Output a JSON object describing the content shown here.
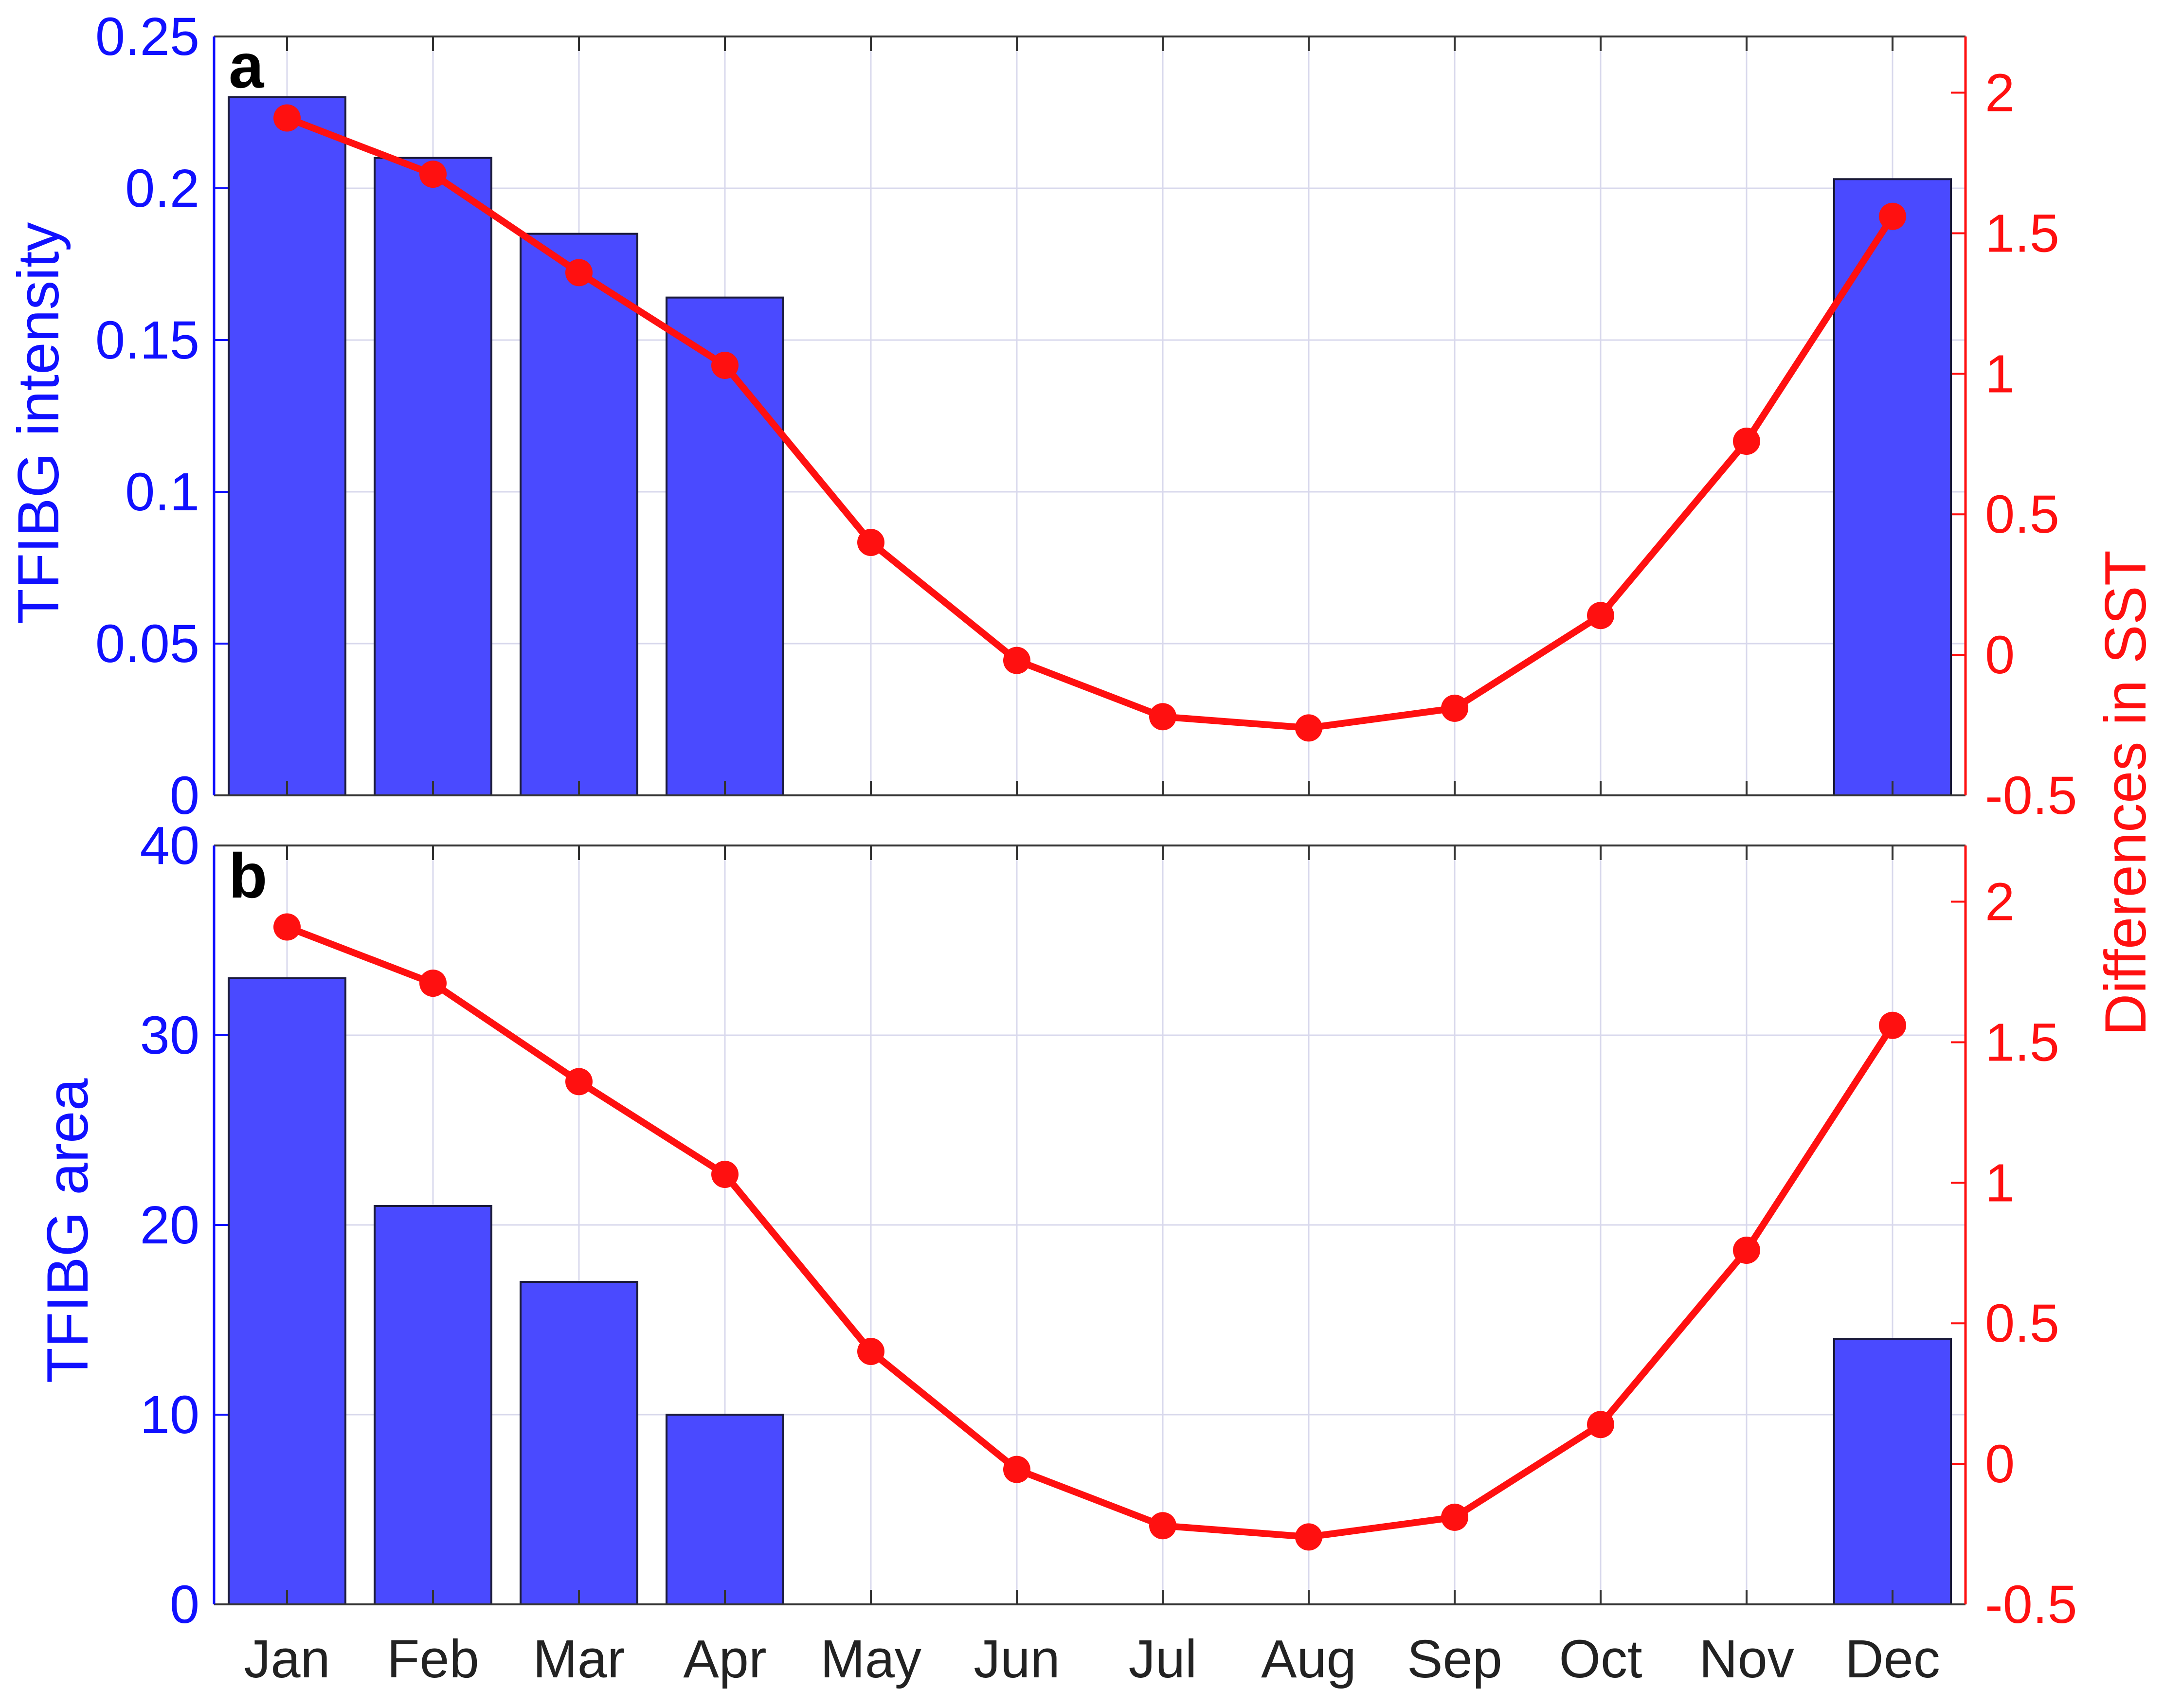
{
  "colors": {
    "bar": "#4a4aff",
    "bar_edge": "#1a1a3a",
    "line": "#ff1010",
    "left_axis": "#1010ff",
    "right_axis": "#ff1010",
    "grid": "#d8d8ec"
  },
  "chart_data": [
    {
      "panel": "a",
      "type": "bar",
      "categories": [
        "Jan",
        "Feb",
        "Mar",
        "Apr",
        "May",
        "Jun",
        "Jul",
        "Aug",
        "Sep",
        "Oct",
        "Nov",
        "Dec"
      ],
      "series": [
        {
          "axis": "left",
          "type": "bar",
          "values": [
            0.23,
            0.21,
            0.185,
            0.164,
            0,
            0,
            0,
            0,
            0,
            0,
            0,
            0.203
          ]
        },
        {
          "axis": "right",
          "type": "line",
          "values": [
            1.91,
            1.71,
            1.36,
            1.03,
            0.4,
            -0.02,
            -0.22,
            -0.26,
            -0.19,
            0.14,
            0.76,
            1.56
          ]
        }
      ],
      "ylabel": "TFIBG intensity",
      "ylabel_right": "Differences in SST",
      "ylim": [
        0,
        0.25
      ],
      "ylim_right": [
        -0.5,
        2.2
      ],
      "yticks": [
        "0",
        "0.05",
        "0.1",
        "0.15",
        "0.2",
        "0.25"
      ],
      "yticks_right": [
        "-0.5",
        "0",
        "0.5",
        "1",
        "1.5",
        "2"
      ],
      "grid": true
    },
    {
      "panel": "b",
      "type": "bar",
      "categories": [
        "Jan",
        "Feb",
        "Mar",
        "Apr",
        "May",
        "Jun",
        "Jul",
        "Aug",
        "Sep",
        "Oct",
        "Nov",
        "Dec"
      ],
      "series": [
        {
          "axis": "left",
          "type": "bar",
          "values": [
            33,
            21,
            17,
            10,
            0,
            0,
            0,
            0,
            0,
            0,
            0,
            14
          ]
        },
        {
          "axis": "right",
          "type": "line",
          "values": [
            1.91,
            1.71,
            1.36,
            1.03,
            0.4,
            -0.02,
            -0.22,
            -0.26,
            -0.19,
            0.14,
            0.76,
            1.56
          ]
        }
      ],
      "ylabel": "TFIBG area",
      "ylabel_right": "Differences in SST",
      "ylim": [
        0,
        40
      ],
      "ylim_right": [
        -0.5,
        2.2
      ],
      "yticks": [
        "0",
        "10",
        "20",
        "30",
        "40"
      ],
      "yticks_right": [
        "-0.5",
        "0",
        "0.5",
        "1",
        "1.5",
        "2"
      ],
      "grid": true
    }
  ]
}
